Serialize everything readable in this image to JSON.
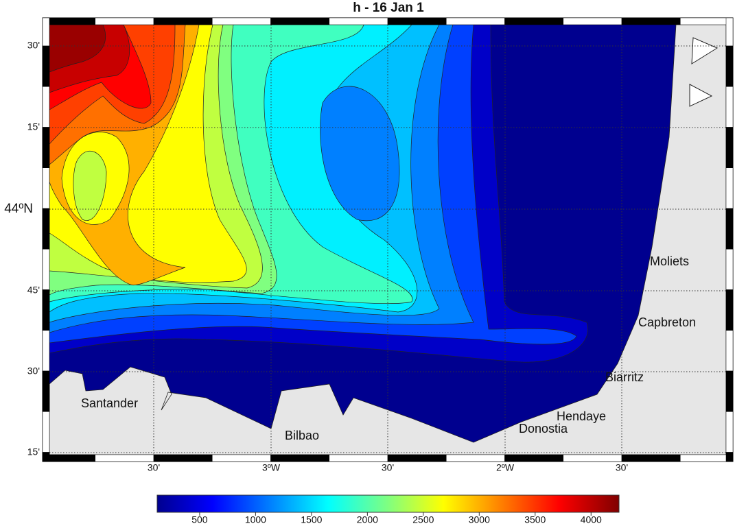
{
  "title": "h - 16 Jan 1",
  "map": {
    "lat_labels": [
      "30'",
      "15'",
      "44ºN",
      "45'",
      "30'",
      "15'"
    ],
    "lon_labels": [
      "30'",
      "3ºW",
      "30'",
      "2ºW",
      "30'"
    ],
    "places": [
      "Moliets",
      "Capbreton",
      "Biarritz",
      "Hendaye",
      "Donostia",
      "Santander",
      "Bilbao"
    ]
  },
  "colorbar": {
    "clim": [
      120,
      4250
    ],
    "ticks": [
      500,
      1000,
      1500,
      2000,
      2500,
      3000,
      3500,
      4000
    ]
  }
}
